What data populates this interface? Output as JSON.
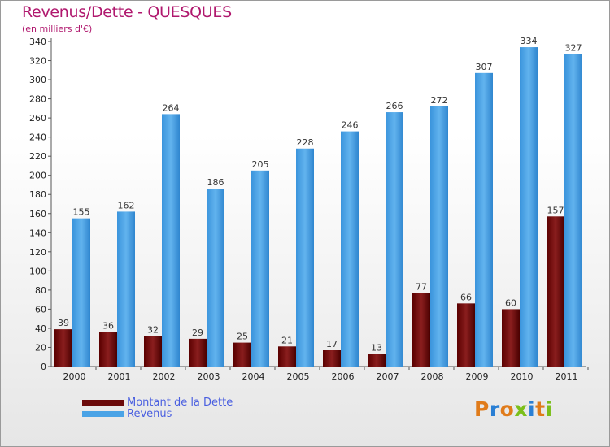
{
  "chart_data": {
    "type": "bar",
    "title": "Revenus/Dette - QUESQUES",
    "subtitle": "(en milliers d'€)",
    "categories": [
      "2000",
      "2001",
      "2002",
      "2003",
      "2004",
      "2005",
      "2006",
      "2007",
      "2008",
      "2009",
      "2010",
      "2011"
    ],
    "series": [
      {
        "name": "Montant de la Dette",
        "color": "#6b0a0a",
        "values": [
          39,
          36,
          32,
          29,
          25,
          21,
          17,
          13,
          77,
          66,
          60,
          157
        ]
      },
      {
        "name": "Revenus",
        "color": "#4aa3e6",
        "values": [
          155,
          162,
          264,
          186,
          205,
          228,
          246,
          266,
          272,
          307,
          334,
          327
        ]
      }
    ],
    "ylim": [
      0,
      340
    ],
    "yticks": [
      0,
      20,
      40,
      60,
      80,
      100,
      120,
      140,
      160,
      180,
      200,
      220,
      240,
      260,
      280,
      300,
      320,
      340
    ],
    "grid": false,
    "legend": "bottom-left"
  },
  "logo": {
    "text": "Proxiti",
    "letter_colors": [
      "#e07b1a",
      "#2a7fd4",
      "#e07b1a",
      "#7bbf1a",
      "#2a7fd4",
      "#e07b1a",
      "#7bbf1a"
    ]
  }
}
